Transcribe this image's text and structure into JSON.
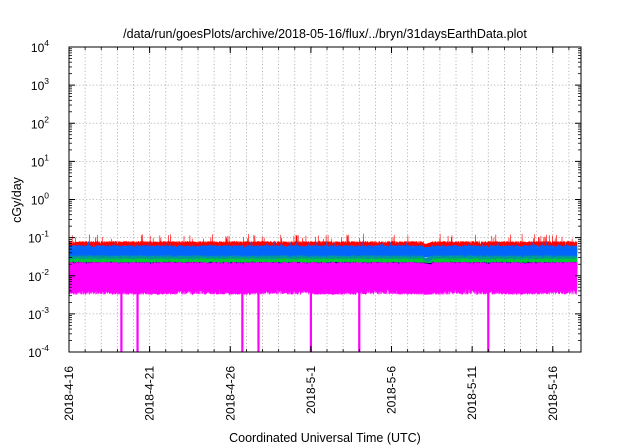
{
  "chart_data": {
    "type": "line",
    "title": "/data/run/goesPlots/archive/2018-05-16/flux/../bryn/31daysEarthData.plot",
    "xlabel": "Coordinated Universal Time (UTC)",
    "ylabel": "cGy/day",
    "yscale": "log",
    "ylim": [
      0.0001,
      10000
    ],
    "xlim": [
      "2018-04-16",
      "2018-05-17 18:00"
    ],
    "grid": true,
    "x_ticks": [
      "2018-4-16",
      "2018-4-21",
      "2018-4-26",
      "2018-5-1",
      "2018-5-6",
      "2018-5-11",
      "2018-5-16"
    ],
    "x_tick_dates": [
      "2018-04-16",
      "2018-04-21",
      "2018-04-26",
      "2018-05-01",
      "2018-05-06",
      "2018-05-11",
      "2018-05-16"
    ],
    "y_ticks": [
      {
        "base": "10",
        "exp": "-4",
        "value": 0.0001
      },
      {
        "base": "10",
        "exp": "-3",
        "value": 0.001
      },
      {
        "base": "10",
        "exp": "-2",
        "value": 0.01
      },
      {
        "base": "10",
        "exp": "-1",
        "value": 0.1
      },
      {
        "base": "10",
        "exp": "0",
        "value": 1
      },
      {
        "base": "10",
        "exp": "1",
        "value": 10
      },
      {
        "base": "10",
        "exp": "2",
        "value": 100
      },
      {
        "base": "10",
        "exp": "3",
        "value": 1000
      },
      {
        "base": "10",
        "exp": "4",
        "value": 10000
      }
    ],
    "data_gap": [
      "2018-05-08 00:00",
      "2018-05-08 12:00"
    ],
    "series": [
      {
        "color": "#ff0000",
        "low": 0.045,
        "high": 0.07,
        "spike_max": 0.11
      },
      {
        "color": "#0066ff",
        "low": 0.03,
        "high": 0.055,
        "spike_max": 0.07
      },
      {
        "color": "#009999",
        "low": 0.018,
        "high": 0.03
      },
      {
        "color": "#00cc33",
        "low": 0.015,
        "high": 0.025
      },
      {
        "color": "#000088",
        "low": 0.012,
        "high": 0.02
      },
      {
        "color": "#ffcc00",
        "low": 0.008,
        "high": 0.014
      },
      {
        "color": "#ff00ff",
        "low": 0.004,
        "high": 0.02
      }
    ],
    "magenta_dropouts": [
      "2018-04-19 06:00",
      "2018-04-20 06:00",
      "2018-04-26 18:00",
      "2018-04-27 18:00",
      "2018-05-01 00:00",
      "2018-05-04 00:00",
      "2018-05-12 00:00"
    ]
  }
}
